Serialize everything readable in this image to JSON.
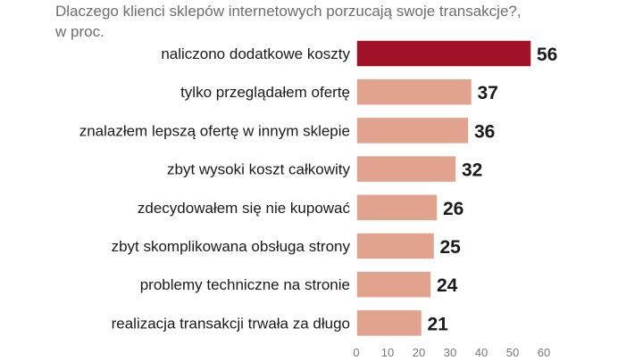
{
  "chart_data": {
    "type": "bar",
    "orientation": "horizontal",
    "title": "Dlaczego klienci sklepów internetowych porzucają swoje transakcje?,",
    "subtitle": "w proc.",
    "categories": [
      "naliczono dodatkowe koszty",
      "tylko przeglądałem ofertę",
      "znalazłem lepszą ofertę w innym sklepie",
      "zbyt wysoki koszt całkowity",
      "zdecydowałem się nie kupować",
      "zbyt skomplikowana obsługa strony",
      "problemy techniczne na stronie",
      "realizacja transakcji trwała za długo"
    ],
    "values": [
      56,
      37,
      36,
      32,
      26,
      25,
      24,
      21
    ],
    "value_labels": [
      "56",
      "37",
      "36",
      "32",
      "26",
      "25",
      "24",
      "21"
    ],
    "xlim": [
      0,
      60
    ],
    "xticks": [
      "0",
      "10",
      "20",
      "30",
      "40",
      "50",
      "60"
    ],
    "grid": false,
    "colors": {
      "highlight": "#a11127",
      "bar": "#e2a38e",
      "bar_stroke": "#ffffff"
    }
  }
}
